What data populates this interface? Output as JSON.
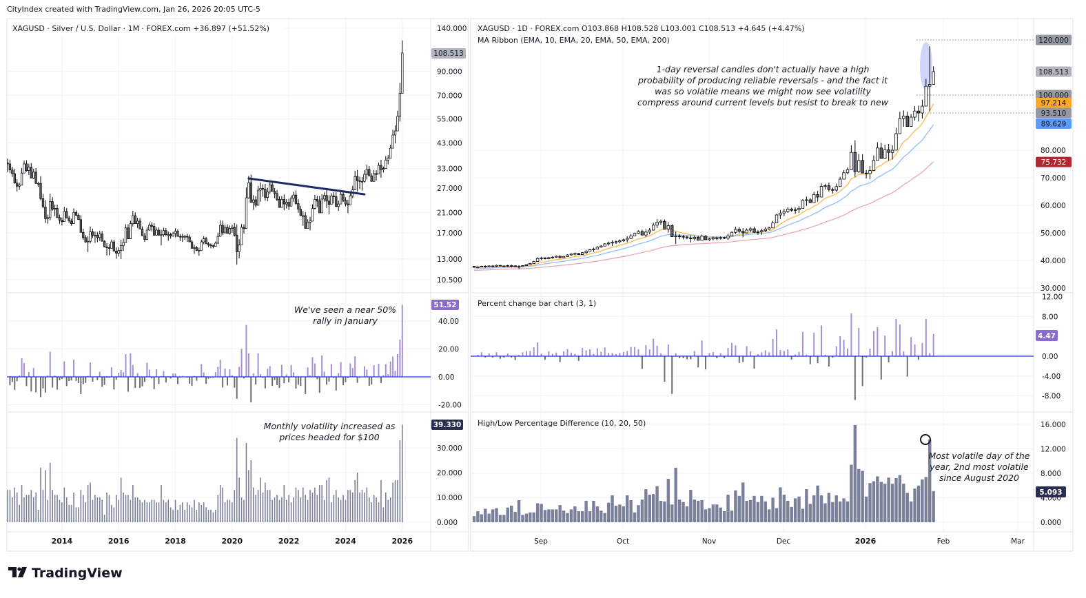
{
  "credit": "CityIndex created with TradingView.com, Jan 26, 2026 20:05 UTC-5",
  "logo_text": "TradingView",
  "left_chart": {
    "legend": "XAGUSD · Silver / U.S. Dollar · 1M · FOREX.com  +36.897 (+51.52%)",
    "price_scale": "log",
    "price_ticks": [
      "140.000",
      "90.000",
      "70.000",
      "55.000",
      "43.000",
      "33.000",
      "27.000",
      "21.000",
      "17.000",
      "13.000",
      "10.500"
    ],
    "last_price_label": "108.513",
    "x_labels": [
      "2014",
      "2016",
      "2018",
      "2020",
      "2022",
      "2024",
      "2026"
    ],
    "trendline": {
      "from": {
        "date": "2020-08",
        "price": 29.8
      },
      "to": {
        "date": "2024-09",
        "price": 25.3
      },
      "color": "#1c2a66"
    },
    "closes": [
      34.6,
      32.5,
      31.3,
      28.4,
      27.5,
      27.8,
      31.5,
      34.6,
      32.3,
      33.4,
      29.9,
      31.8,
      28.3,
      28.3,
      24.2,
      22.2,
      19.7,
      19.9,
      23.5,
      21.7,
      21.9,
      19.9,
      19.4,
      19.1,
      21.2,
      19.8,
      19.2,
      18.7,
      21.0,
      20.4,
      19.5,
      17.1,
      16.2,
      15.5,
      15.6,
      17.2,
      16.6,
      16.6,
      16.2,
      16.8,
      15.6,
      14.7,
      14.6,
      14.5,
      15.5,
      14.1,
      13.8,
      14.2,
      14.9,
      15.4,
      17.9,
      16.0,
      18.7,
      20.3,
      18.7,
      19.2,
      17.7,
      16.5,
      15.9,
      17.5,
      18.4,
      18.2,
      16.6,
      17.5,
      16.6,
      16.7,
      17.4,
      16.7,
      16.7,
      16.5,
      16.9,
      17.3,
      16.4,
      16.3,
      16.4,
      16.4,
      16.3,
      15.5,
      14.5,
      14.6,
      14.2,
      14.2,
      15.5,
      16.0,
      15.2,
      15.0,
      14.9,
      14.8,
      15.3,
      16.4,
      18.4,
      17.0,
      18.0,
      16.9,
      17.8,
      18.0,
      16.6,
      14.0,
      15.0,
      18.0,
      17.8,
      24.4,
      28.5,
      23.3,
      23.9,
      22.6,
      26.4,
      26.9,
      26.7,
      24.5,
      25.9,
      27.9,
      26.1,
      25.5,
      24.0,
      22.1,
      24.0,
      22.9,
      23.3,
      22.4,
      24.3,
      25.1,
      23.0,
      21.7,
      20.3,
      20.3,
      17.8,
      19.0,
      19.2,
      21.9,
      24.0,
      23.6,
      20.9,
      24.1,
      25.0,
      23.6,
      22.8,
      24.9,
      24.7,
      22.3,
      22.9,
      25.3,
      23.8,
      22.9,
      22.7,
      24.9,
      26.5,
      30.4,
      29.1,
      28.9,
      28.9,
      31.1,
      32.7,
      30.6,
      28.9,
      31.3,
      31.2,
      34.1,
      32.6,
      33.0,
      36.0,
      36.7,
      40.7,
      46.6,
      48.6,
      56.5,
      71.6,
      108.513
    ],
    "pct_panel": {
      "ticks": [
        "40.00",
        "20.00",
        "0.00",
        "-20.00"
      ],
      "last_label": "51.52",
      "annotation": [
        "We've seen a near 50%",
        "rally in January"
      ]
    },
    "vol_panel": {
      "ticks": [
        "30.000",
        "20.000",
        "10.000",
        "0.000"
      ],
      "last_label": "39.330",
      "annotation": [
        "Monthly volatility increased as",
        "prices headed for $100"
      ],
      "values": [
        13,
        13,
        10,
        14,
        12,
        7,
        15,
        10,
        11,
        11,
        13,
        10,
        12,
        5,
        22,
        13,
        21,
        9,
        24,
        13,
        11,
        11,
        9,
        8,
        14,
        10,
        7,
        7,
        12,
        6,
        6,
        13,
        11,
        8,
        15,
        16,
        9,
        11,
        10,
        10,
        9,
        3,
        12,
        11,
        7,
        6,
        11,
        9,
        18,
        12,
        11,
        11,
        9,
        15,
        10,
        10,
        9,
        8,
        9,
        8,
        8,
        9,
        9,
        8,
        8,
        15,
        9,
        8,
        9,
        6,
        5,
        9,
        5,
        7,
        8,
        5,
        8,
        7,
        6,
        9,
        5,
        8,
        7,
        8,
        6,
        5,
        5,
        4,
        5,
        11,
        15,
        14,
        8,
        9,
        9,
        8,
        13,
        34,
        18,
        10,
        9,
        32,
        21,
        25,
        14,
        11,
        13,
        18,
        12,
        16,
        13,
        13,
        9,
        10,
        11,
        9,
        10,
        15,
        9,
        11,
        8,
        10,
        14,
        13,
        10,
        14,
        11,
        9,
        13,
        12,
        14,
        11,
        15,
        15,
        9,
        17,
        18,
        8,
        11,
        13,
        10,
        9,
        11,
        9,
        13,
        13,
        12,
        17,
        20,
        12,
        13,
        12,
        14,
        10,
        8,
        11,
        10,
        8,
        17,
        6,
        12,
        9,
        10,
        16,
        17,
        17,
        33,
        39.33
      ]
    }
  },
  "right_chart": {
    "legend": "XAGUSD · 1D · FOREX.com  O103.868  H108.528  L103.001  C108.513  +4.645 (+4.47%)",
    "ma_legend": "MA Ribbon (EMA, 10, EMA, 20, EMA, 50, EMA, 200)",
    "price_ticks": [
      "80.000",
      "70.000",
      "60.000",
      "50.000",
      "40.000",
      "30.000"
    ],
    "price_labels": [
      {
        "text": "120.000",
        "value": 120,
        "bg": "#9598a1",
        "fg": "#131722"
      },
      {
        "text": "108.513",
        "value": 108.513,
        "bg": "#b2b5be",
        "fg": "#131722"
      },
      {
        "text": "100.000",
        "value": 100,
        "bg": "#9598a1",
        "fg": "#131722"
      },
      {
        "text": "97.214",
        "value": 97.214,
        "bg": "#ffa726",
        "fg": "#131722"
      },
      {
        "text": "93.510",
        "value": 93.51,
        "bg": "#9598a1",
        "fg": "#131722"
      },
      {
        "text": "89.629",
        "value": 89.629,
        "bg": "#5b9cf6",
        "fg": "#131722"
      },
      {
        "text": "75.732",
        "value": 75.732,
        "bg": "#b22833",
        "fg": "#ffffff"
      }
    ],
    "horizontal_levels": [
      120,
      100,
      93.51
    ],
    "ma_colors": {
      "ema10": "#ffb74d",
      "ema20": "#90bff9",
      "ema50": "#e8a8ae"
    },
    "annotation": [
      "1-day reversal candles don't actually have a high",
      "probability of producing reliable reversals - and the fact it",
      "was so volatile means we might now see volatility",
      "compress around current levels but resist to break to new"
    ],
    "x_labels": [
      "Sep",
      "Oct",
      "Nov",
      "Dec",
      "2026",
      "Feb",
      "Mar"
    ],
    "closes": [
      37.5,
      37.6,
      37.9,
      37.8,
      38.0,
      37.9,
      38.2,
      38.0,
      37.9,
      38.1,
      38.0,
      37.7,
      37.8,
      38.1,
      38.5,
      38.9,
      39.6,
      40.7,
      40.9,
      40.6,
      41.0,
      41.2,
      41.5,
      41.0,
      41.4,
      42.0,
      42.3,
      42.5,
      42.1,
      42.8,
      43.3,
      43.9,
      44.1,
      44.8,
      45.2,
      46.0,
      46.3,
      46.6,
      46.8,
      47.1,
      47.5,
      48.0,
      48.9,
      49.8,
      50.5,
      49.2,
      50.3,
      51.0,
      52.8,
      53.9,
      54.2,
      51.4,
      52.6,
      48.6,
      48.9,
      48.7,
      48.5,
      48.2,
      47.9,
      48.4,
      47.3,
      48.8,
      47.5,
      47.8,
      48.2,
      48.0,
      48.3,
      48.1,
      48.9,
      50.2,
      51.3,
      50.6,
      50.0,
      51.0,
      51.5,
      50.2,
      50.4,
      50.8,
      51.4,
      51.8,
      53.6,
      56.5,
      57.2,
      57.8,
      58.6,
      58.2,
      58.4,
      58.9,
      61.8,
      62.0,
      61.0,
      63.9,
      63.0,
      66.9,
      67.1,
      65.7,
      65.5,
      66.8,
      69.5,
      71.8,
      72.9,
      79.2,
      72.2,
      76.3,
      71.7,
      71.5,
      72.6,
      76.3,
      80.8,
      77.0,
      80.2,
      79.2,
      80.0,
      86.0,
      91.5,
      92.4,
      88.6,
      92.0,
      94.2,
      93.5,
      96.0,
      103.2,
      103.868,
      108.513
    ],
    "last_highs": {
      "index_from_end_1": 117.7
    },
    "pct_panel": {
      "title": "Percent change bar chart (3, 1)",
      "ticks": [
        "12.00",
        "8.00",
        "0.00",
        "-4.00",
        "-8.00"
      ],
      "last_label": "4.47"
    },
    "vol_panel": {
      "title": "High/Low Percentage Difference (10, 20, 50)",
      "ticks": [
        "16.000",
        "12.000",
        "8.000",
        "4.000",
        "0.000"
      ],
      "last_label": "5.093",
      "annotation": [
        "Most volatile day of the",
        "year, 2nd most volatile",
        "since August 2020"
      ],
      "values": [
        1,
        1.8,
        1.3,
        2.2,
        1.4,
        2.1,
        2.3,
        1.2,
        1.2,
        2.4,
        2.7,
        1.7,
        3.6,
        1.2,
        1.4,
        1.6,
        1.6,
        3.1,
        3,
        2,
        2.1,
        2.1,
        2.1,
        2.8,
        1.9,
        1.5,
        2.1,
        2.6,
        1.8,
        1.8,
        3.5,
        1.8,
        3.5,
        2.6,
        1.9,
        1.5,
        3.2,
        4.4,
        2.7,
        2.9,
        2.6,
        4.4,
        3.6,
        1.6,
        2.8,
        3.7,
        5.4,
        4.5,
        4.6,
        5.9,
        3.5,
        3.4,
        7.1,
        2.9,
        8.9,
        3.7,
        3.3,
        2.6,
        5.3,
        3.7,
        3.5,
        3.6,
        2.1,
        2.3,
        2.9,
        2.9,
        2.4,
        1.8,
        4.5,
        1.9,
        5.2,
        4.3,
        6.5,
        3.5,
        3.6,
        4.3,
        3.3,
        4.3,
        3.4,
        2.1,
        4.0,
        2.3,
        5.7,
        4.5,
        3.5,
        2.5,
        3.9,
        4.2,
        2.2,
        5.4,
        3.0,
        4.4,
        6.0,
        4.4,
        3.1,
        4.8,
        3.3,
        4.4,
        3.4,
        3.9,
        3.4,
        9.4,
        15.9,
        8.7,
        8.4,
        4.2,
        6.4,
        6.7,
        7.5,
        6.6,
        6.3,
        7.3,
        6.3,
        7.2,
        7.7,
        6.3,
        4.8,
        3.4,
        5.5,
        6.0,
        7.0,
        7.4,
        13.5,
        5.093
      ]
    }
  },
  "colors": {
    "up_body": "#ffffff",
    "down_body": "#5d606b",
    "wick": "#000000",
    "pct_up": "#a48fd6",
    "pct_down": "#6b6e75",
    "vol_bar": "#7a7f9a",
    "zero_line": "#1f2fe0",
    "pct_label": "#8c6bd0",
    "vol_label": "#2a2e50",
    "highlight": "#c5cbf5"
  }
}
